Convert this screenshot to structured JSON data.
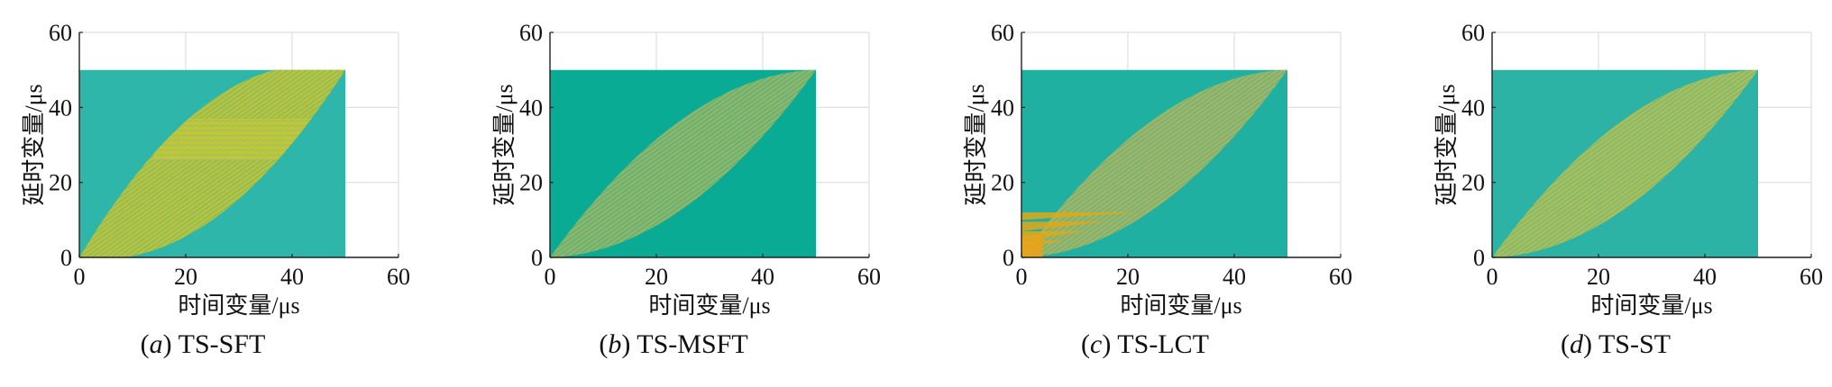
{
  "chart_data": [
    {
      "type": "heatmap",
      "caption_letter": "a",
      "caption_text": "TS-SFT",
      "xlabel": "时间变量/μs",
      "ylabel": "延时变量/μs",
      "xlim": [
        0,
        60
      ],
      "ylim": [
        0,
        60
      ],
      "xticks": [
        "0",
        "20",
        "40",
        "60"
      ],
      "yticks": [
        "0",
        "20",
        "40",
        "60"
      ],
      "grid": true,
      "image_extent": {
        "x": [
          0,
          50
        ],
        "y": [
          0,
          50
        ]
      },
      "background_color": "#2db6a9",
      "band_color": "#b9c23a",
      "band": {
        "x": [
          0,
          50
        ],
        "upper_mid_y": 42,
        "lower_mid_y": 10
      },
      "artifact": {
        "type": "horizontal_stripes",
        "x": [
          14,
          44
        ],
        "y": [
          26,
          37
        ],
        "color": "#c8c82e"
      }
    },
    {
      "type": "heatmap",
      "caption_letter": "b",
      "caption_text": "TS-MSFT",
      "xlabel": "时间变量/μs",
      "ylabel": "延时变量/μs",
      "xlim": [
        0,
        60
      ],
      "ylim": [
        0,
        60
      ],
      "xticks": [
        "0",
        "20",
        "40",
        "60"
      ],
      "yticks": [
        "0",
        "20",
        "40",
        "60"
      ],
      "grid": true,
      "image_extent": {
        "x": [
          0,
          50
        ],
        "y": [
          0,
          50
        ]
      },
      "background_color": "#0aab95",
      "band_color": "#8db66a",
      "band": {
        "x": [
          0,
          50
        ],
        "upper_mid_y": 37,
        "lower_mid_y": 13
      },
      "artifact": null
    },
    {
      "type": "heatmap",
      "caption_letter": "c",
      "caption_text": "TS-LCT",
      "xlabel": "时间变量/μs",
      "ylabel": "延时变量/μs",
      "xlim": [
        0,
        60
      ],
      "ylim": [
        0,
        60
      ],
      "xticks": [
        "0",
        "20",
        "40",
        "60"
      ],
      "yticks": [
        "0",
        "20",
        "40",
        "60"
      ],
      "grid": true,
      "image_extent": {
        "x": [
          0,
          50
        ],
        "y": [
          0,
          50
        ]
      },
      "background_color": "#20b0a2",
      "band_color": "#9eb565",
      "band": {
        "x": [
          0,
          50
        ],
        "upper_mid_y": 37,
        "lower_mid_y": 13
      },
      "artifact": {
        "type": "low_region_spread",
        "x": [
          0,
          22
        ],
        "y": [
          0,
          12
        ],
        "color": "#e0a818"
      }
    },
    {
      "type": "heatmap",
      "caption_letter": "d",
      "caption_text": "TS-ST",
      "xlabel": "时间变量/μs",
      "ylabel": "延时变量/μs",
      "xlim": [
        0,
        60
      ],
      "ylim": [
        0,
        60
      ],
      "xticks": [
        "0",
        "20",
        "40",
        "60"
      ],
      "yticks": [
        "0",
        "20",
        "40",
        "60"
      ],
      "grid": true,
      "image_extent": {
        "x": [
          0,
          50
        ],
        "y": [
          0,
          50
        ]
      },
      "background_color": "#2db3a5",
      "band_color": "#a7be5a",
      "band": {
        "x": [
          0,
          50
        ],
        "upper_mid_y": 37,
        "lower_mid_y": 13
      },
      "artifact": null
    }
  ]
}
